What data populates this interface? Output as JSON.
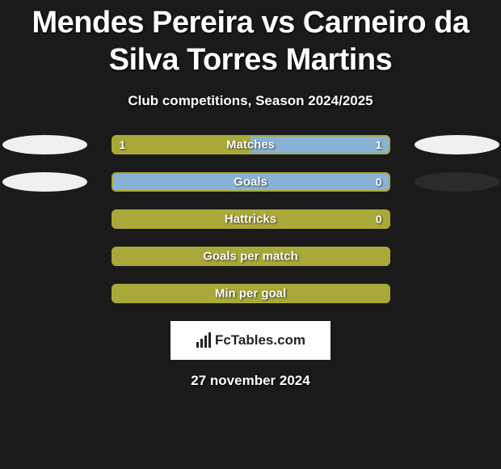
{
  "title": "Mendes Pereira vs Carneiro da Silva Torres Martins",
  "subtitle": "Club competitions, Season 2024/2025",
  "colors": {
    "background": "#1a1a1a",
    "ellipse_light": "#f0f0f0",
    "ellipse_dark": "#2b2b2b",
    "bar_main": "#a9a93a",
    "bar_alt": "#88b3d6",
    "bar_border": "#a9a93a",
    "text": "#ffffff"
  },
  "rows": [
    {
      "label": "Matches",
      "left_val": "1",
      "right_val": "1",
      "left_pct": 50,
      "right_pct": 50,
      "left_fill": "#a9a93a",
      "right_fill": "#88b3d6",
      "left_ellipse": "#f0f0f0",
      "right_ellipse": "#f0f0f0",
      "show_left_val": true,
      "show_right_val": true
    },
    {
      "label": "Goals",
      "left_val": "",
      "right_val": "0",
      "left_pct": 0,
      "right_pct": 100,
      "left_fill": "#a9a93a",
      "right_fill": "#88b3d6",
      "left_ellipse": "#f0f0f0",
      "right_ellipse": "#2b2b2b",
      "show_left_val": false,
      "show_right_val": true
    },
    {
      "label": "Hattricks",
      "left_val": "",
      "right_val": "0",
      "left_pct": 100,
      "right_pct": 0,
      "left_fill": "#a9a93a",
      "right_fill": "#88b3d6",
      "left_ellipse": null,
      "right_ellipse": null,
      "show_left_val": false,
      "show_right_val": true
    },
    {
      "label": "Goals per match",
      "left_val": "",
      "right_val": "",
      "left_pct": 100,
      "right_pct": 0,
      "left_fill": "#a9a93a",
      "right_fill": "#88b3d6",
      "left_ellipse": null,
      "right_ellipse": null,
      "show_left_val": false,
      "show_right_val": false
    },
    {
      "label": "Min per goal",
      "left_val": "",
      "right_val": "",
      "left_pct": 100,
      "right_pct": 0,
      "left_fill": "#a9a93a",
      "right_fill": "#88b3d6",
      "left_ellipse": null,
      "right_ellipse": null,
      "show_left_val": false,
      "show_right_val": false
    }
  ],
  "logo_text": "FcTables.com",
  "date": "27 november 2024"
}
